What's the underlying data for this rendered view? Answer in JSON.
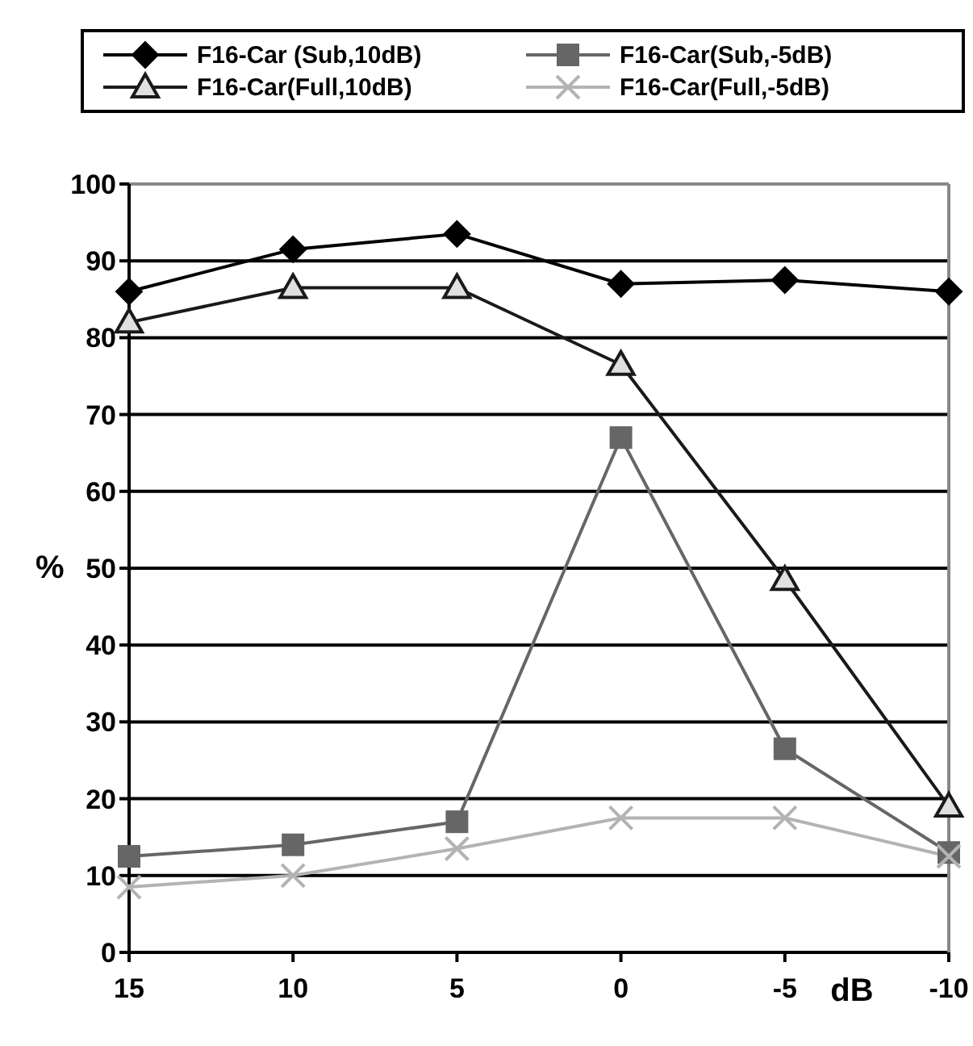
{
  "chart_data": {
    "type": "line",
    "xlabel": "dB",
    "ylabel": "%",
    "categories": [
      "15",
      "10",
      "5",
      "0",
      "-5",
      "-10"
    ],
    "series": [
      {
        "name": "F16-Car (Sub,10dB)",
        "color": "#000000",
        "marker": "diamond",
        "values": [
          86,
          91.5,
          93.5,
          87,
          87.5,
          86
        ]
      },
      {
        "name": "F16-Car(Sub,-5dB)",
        "color": "#666666",
        "marker": "square",
        "values": [
          12.5,
          14,
          17,
          67,
          26.5,
          13
        ]
      },
      {
        "name": "F16-Car(Full,10dB)",
        "color": "#1a1a1a",
        "marker": "triangle",
        "values": [
          82,
          86.5,
          86.5,
          76.5,
          48.5,
          19
        ]
      },
      {
        "name": "F16-Car(Full,-5dB)",
        "color": "#b3b3b3",
        "marker": "cross",
        "values": [
          8.5,
          10,
          13.5,
          17.5,
          17.5,
          12.5
        ]
      }
    ],
    "ylim": [
      0,
      100
    ],
    "yticks": [
      0,
      10,
      20,
      30,
      40,
      50,
      60,
      70,
      80,
      90,
      100
    ],
    "grid": "y",
    "legend": "top",
    "line_style": "solid"
  }
}
